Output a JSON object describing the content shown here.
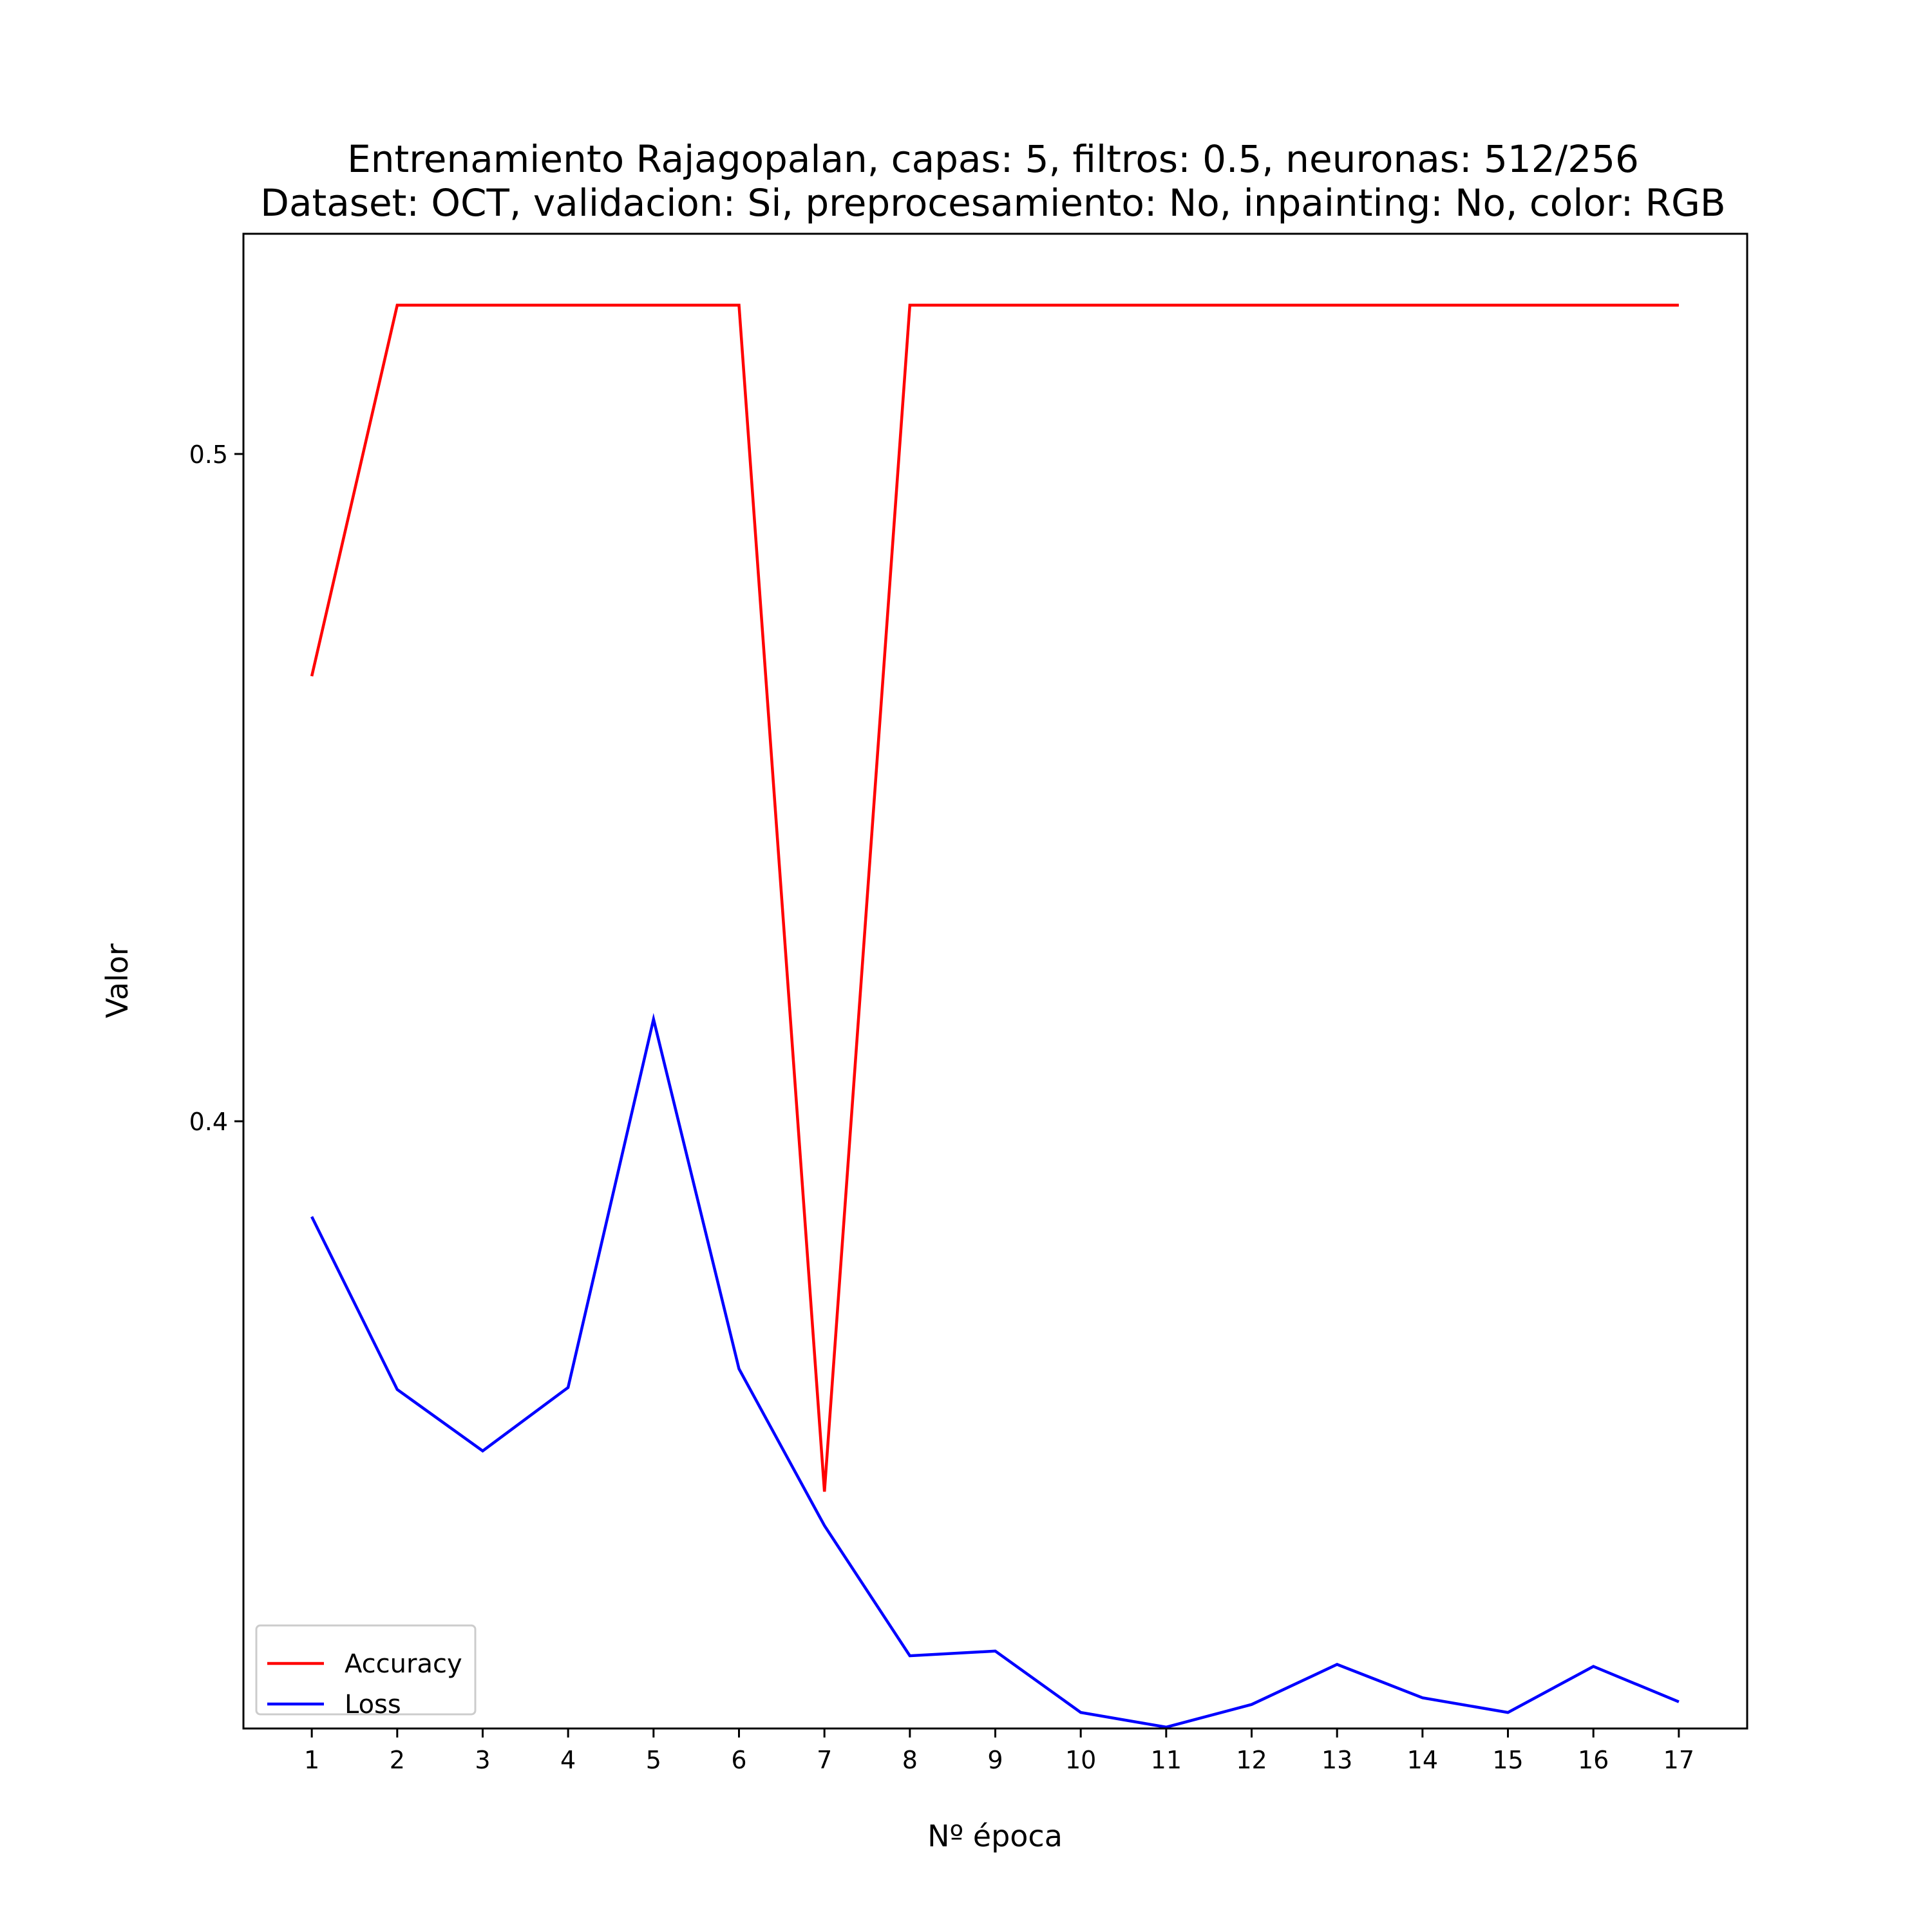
{
  "chart_data": {
    "type": "line",
    "title": "Entrenamiento Rajagopalan, capas: 5, filtros: 0.5, neuronas: 512/256",
    "subtitle": "Dataset: OCT, validacion: Si, preprocesamiento: No, inpainting: No, color: RGB",
    "xlabel": "Nº época",
    "ylabel": "Valor",
    "x": [
      1,
      2,
      3,
      4,
      5,
      6,
      7,
      8,
      9,
      10,
      11,
      12,
      13,
      14,
      15,
      16,
      17
    ],
    "xlim": [
      0.2,
      17.8
    ],
    "ylim": [
      0.309,
      0.533
    ],
    "yticks": [
      0.4,
      0.5
    ],
    "ytick_labels": [
      "0.4",
      "0.5"
    ],
    "grid": false,
    "legend": "lower-left",
    "series": [
      {
        "name": "Accuracy",
        "color": "#ff0000",
        "values": [
          0.4667,
          0.5223,
          0.5223,
          0.5223,
          0.5223,
          0.5223,
          0.3445,
          0.5223,
          0.5223,
          0.5223,
          0.5223,
          0.5223,
          0.5223,
          0.5223,
          0.5223,
          0.5223,
          0.5223
        ]
      },
      {
        "name": "Loss",
        "color": "#0000ff",
        "values": [
          0.3857,
          0.3598,
          0.3506,
          0.3601,
          0.4153,
          0.3629,
          0.3394,
          0.3199,
          0.3206,
          0.3114,
          0.3092,
          0.3126,
          0.3186,
          0.3136,
          0.3114,
          0.3183,
          0.313
        ]
      }
    ]
  }
}
